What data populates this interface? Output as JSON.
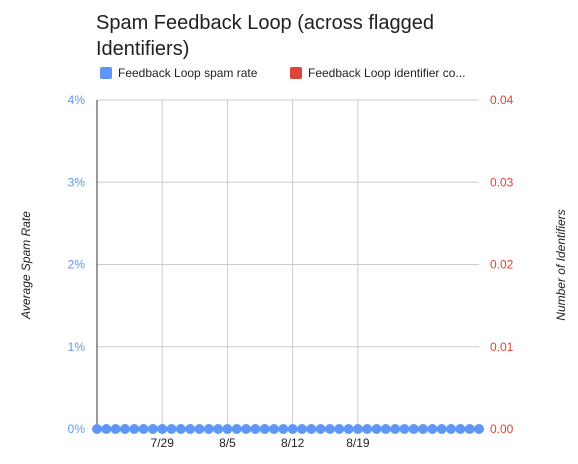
{
  "chart_data": {
    "type": "line",
    "title": "Spam Feedback Loop (across flagged Identifiers)",
    "legend_position": "top",
    "series": [
      {
        "name": "Feedback Loop spam rate",
        "color": "#5e97f6",
        "axis": "left",
        "values": [
          0,
          0,
          0,
          0,
          0,
          0,
          0,
          0,
          0,
          0,
          0,
          0,
          0,
          0,
          0,
          0,
          0,
          0,
          0,
          0,
          0,
          0,
          0,
          0,
          0,
          0,
          0,
          0,
          0,
          0,
          0,
          0,
          0,
          0,
          0,
          0,
          0,
          0,
          0,
          0,
          0,
          0
        ]
      },
      {
        "name": "Feedback Loop identifier co...",
        "color": "#db4437",
        "axis": "right",
        "values": []
      }
    ],
    "x_start_date": "2023-07-22",
    "x_tick_labels": [
      "7/29",
      "8/5",
      "8/12",
      "8/19"
    ],
    "ylabel_left": "Average Spam Rate",
    "ylabel_right": "Number of Identifiers",
    "left_axis": {
      "min": 0,
      "max": 4,
      "ticks": [
        "0%",
        "1%",
        "2%",
        "3%",
        "4%"
      ],
      "color": "#5e97f6"
    },
    "right_axis": {
      "min": 0,
      "max": 0.04,
      "ticks": [
        "0.00",
        "0.01",
        "0.02",
        "0.03",
        "0.04"
      ],
      "color": "#db4437"
    },
    "grid": true
  }
}
